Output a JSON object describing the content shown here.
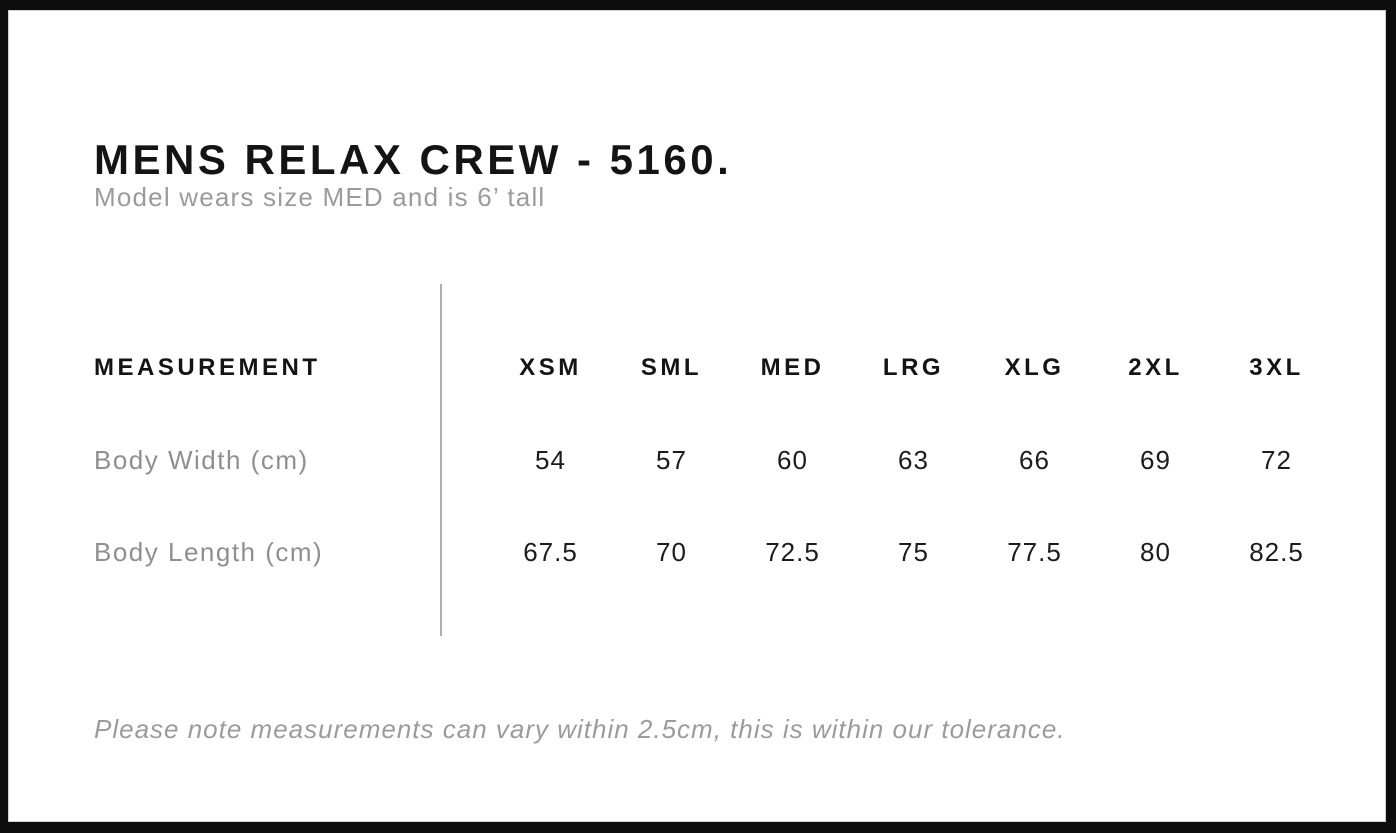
{
  "page": {
    "title": "MENS RELAX CREW - 5160.",
    "subtitle": "Model wears size MED and is 6’ tall",
    "footnote": "Please note measurements can vary within 2.5cm, this is within our tolerance."
  },
  "size_chart": {
    "measurement_header": "MEASUREMENT",
    "size_headers": [
      "XSM",
      "SML",
      "MED",
      "LRG",
      "XLG",
      "2XL",
      "3XL"
    ],
    "rows": [
      {
        "label": "Body Width (cm)",
        "values": [
          "54",
          "57",
          "60",
          "63",
          "66",
          "69",
          "72"
        ]
      },
      {
        "label": "Body Length (cm)",
        "values": [
          "67.5",
          "70",
          "72.5",
          "75",
          "77.5",
          "80",
          "82.5"
        ]
      }
    ],
    "tolerance_cm": "2.5"
  },
  "colors": {
    "frame": "#0d0d0d",
    "text": "#141414",
    "muted_text": "#9b9b9b",
    "divider": "#b0b0b0",
    "background": "#ffffff"
  }
}
